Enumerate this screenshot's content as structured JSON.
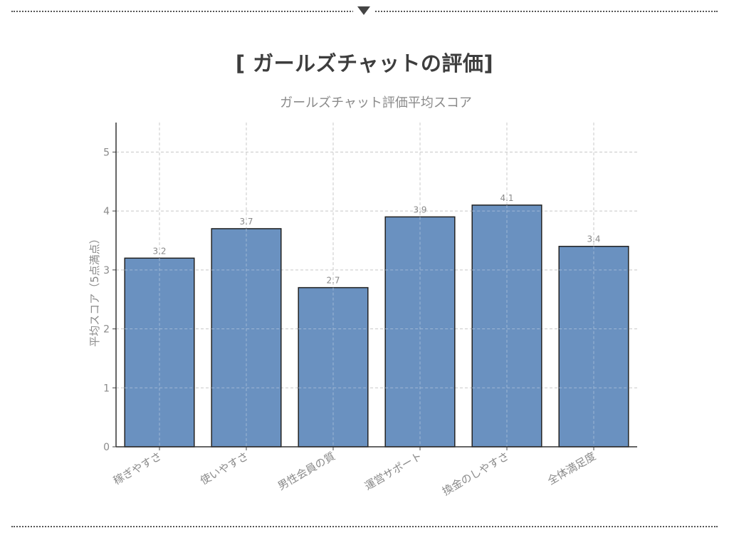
{
  "heading": "[ ガールズチャットの評価]",
  "colors": {
    "bar_fill": "#6a91c0",
    "bar_stroke": "#222222",
    "grid": "#c8c8c8",
    "text_muted": "#8a8a8a",
    "heading": "#3d3d3d"
  },
  "chart_data": {
    "type": "bar",
    "title": "ガールズチャット評価平均スコア",
    "ylabel": "平均スコア（5点満点）",
    "xlabel": "",
    "categories": [
      "稼ぎやすさ",
      "使いやすさ",
      "男性会員の質",
      "運営サポート",
      "換金のしやすさ",
      "全体満足度"
    ],
    "values": [
      3.2,
      3.7,
      2.7,
      3.9,
      4.1,
      3.4
    ],
    "data_labels": [
      "3.2",
      "3.7",
      "2.7",
      "3.9",
      "4.1",
      "3.4"
    ],
    "yticks": [
      "0",
      "1",
      "2",
      "3",
      "4",
      "5"
    ],
    "ylim": [
      0,
      5.5
    ],
    "grid": true,
    "legend": "none"
  }
}
